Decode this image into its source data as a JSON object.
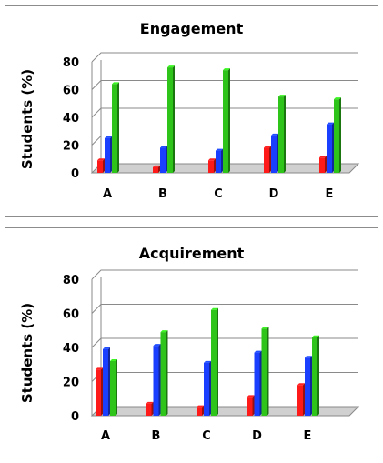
{
  "chart_data": [
    {
      "type": "bar",
      "title": "Engagement",
      "ylabel": "Students (%)",
      "xlabel": "",
      "ylim": [
        0,
        80
      ],
      "yticks": [
        0,
        20,
        40,
        60,
        80
      ],
      "categories": [
        "A",
        "B",
        "C",
        "D",
        "E"
      ],
      "series": [
        {
          "color": "#ff1a1a",
          "values": [
            9,
            4,
            9,
            18,
            11
          ]
        },
        {
          "color": "#1a3fff",
          "values": [
            25,
            18,
            16,
            27,
            35
          ]
        },
        {
          "color": "#2ec41a",
          "values": [
            64,
            76,
            74,
            55,
            53
          ]
        }
      ],
      "grid": true,
      "legend": "none"
    },
    {
      "type": "bar",
      "title": "Acquirement",
      "ylabel": "Students (%)",
      "xlabel": "",
      "ylim": [
        0,
        80
      ],
      "yticks": [
        0,
        20,
        40,
        60,
        80
      ],
      "categories": [
        "A",
        "B",
        "C",
        "D",
        "E"
      ],
      "series": [
        {
          "color": "#ff1a1a",
          "values": [
            27,
            7,
            5,
            11,
            18
          ]
        },
        {
          "color": "#1a3fff",
          "values": [
            39,
            41,
            31,
            37,
            34
          ]
        },
        {
          "color": "#2ec41a",
          "values": [
            32,
            49,
            62,
            51,
            46
          ]
        }
      ],
      "grid": true,
      "legend": "none"
    }
  ]
}
